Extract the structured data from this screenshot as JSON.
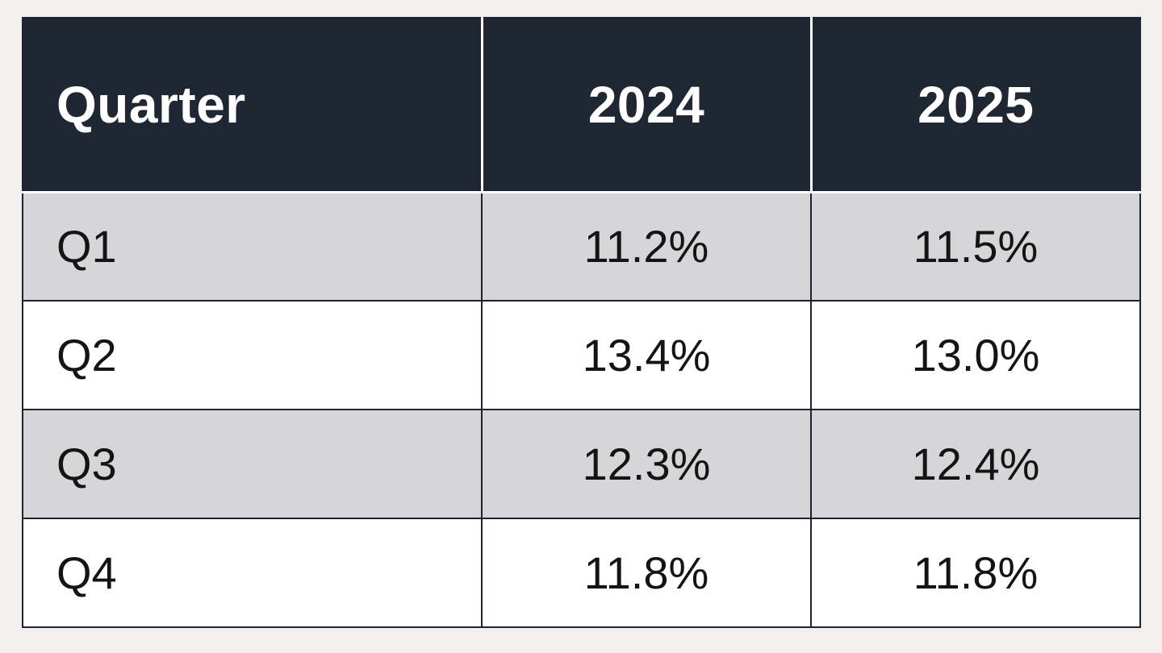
{
  "colors": {
    "page_background": "#f1f0ee",
    "header_background": "#1f2733",
    "header_text": "#ffffff",
    "header_divider": "#ffffff",
    "row_alt_background": "#d6d6d8",
    "row_background": "#ffffff",
    "body_text": "#141414",
    "grid_border": "#1b2430"
  },
  "table": {
    "columns": [
      "Quarter",
      "2024",
      "2025"
    ],
    "rows": [
      {
        "cells": [
          "Q1",
          "11.2%",
          "11.5%"
        ]
      },
      {
        "cells": [
          "Q2",
          "13.4%",
          "13.0%"
        ]
      },
      {
        "cells": [
          "Q3",
          "12.3%",
          "12.4%"
        ]
      },
      {
        "cells": [
          "Q4",
          "11.8%",
          "11.8%"
        ]
      }
    ]
  },
  "chart_data": {
    "type": "table",
    "title": "",
    "columns": [
      "Quarter",
      "2024",
      "2025"
    ],
    "categories": [
      "Q1",
      "Q2",
      "Q3",
      "Q4"
    ],
    "series": [
      {
        "name": "2024",
        "values": [
          11.2,
          13.4,
          12.3,
          11.8
        ]
      },
      {
        "name": "2025",
        "values": [
          11.5,
          13.0,
          12.4,
          11.8
        ]
      }
    ],
    "units": "%",
    "layout": "header row dark, alternating gray/white body rows, first column left-aligned, value columns centered"
  }
}
